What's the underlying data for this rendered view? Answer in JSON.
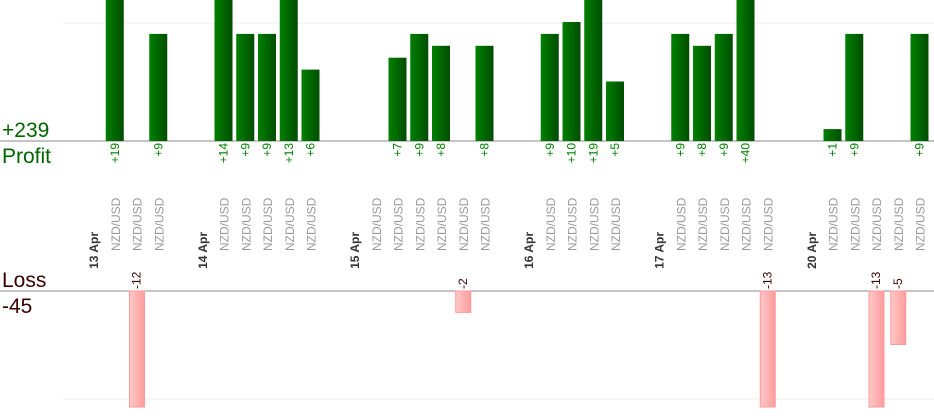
{
  "chart_data": {
    "type": "bar",
    "profit": {
      "label": "Profit",
      "total": "+239",
      "color": "#006400"
    },
    "loss": {
      "label": "Loss",
      "total": "-45",
      "color": "#ffa0a0"
    },
    "groups": [
      {
        "date": "13 Apr",
        "trades": [
          {
            "pair": "NZD/USD",
            "value": 19
          },
          {
            "pair": "NZD/USD",
            "value": -12
          },
          {
            "pair": "NZD/USD",
            "value": 9
          }
        ]
      },
      {
        "date": "14 Apr",
        "trades": [
          {
            "pair": "NZD/USD",
            "value": 14
          },
          {
            "pair": "NZD/USD",
            "value": 9
          },
          {
            "pair": "NZD/USD",
            "value": 9
          },
          {
            "pair": "NZD/USD",
            "value": 13
          },
          {
            "pair": "NZD/USD",
            "value": 6
          }
        ]
      },
      {
        "date": "15 Apr",
        "trades": [
          {
            "pair": "NZD/USD",
            "value": 0
          },
          {
            "pair": "NZD/USD",
            "value": 7
          },
          {
            "pair": "NZD/USD",
            "value": 9
          },
          {
            "pair": "NZD/USD",
            "value": 8
          },
          {
            "pair": "NZD/USD",
            "value": -2
          },
          {
            "pair": "NZD/USD",
            "value": 8
          }
        ]
      },
      {
        "date": "16 Apr",
        "trades": [
          {
            "pair": "NZD/USD",
            "value": 9
          },
          {
            "pair": "NZD/USD",
            "value": 10
          },
          {
            "pair": "NZD/USD",
            "value": 19
          },
          {
            "pair": "NZD/USD",
            "value": 5
          }
        ]
      },
      {
        "date": "17 Apr",
        "trades": [
          {
            "pair": "NZD/USD",
            "value": 9
          },
          {
            "pair": "NZD/USD",
            "value": 8
          },
          {
            "pair": "NZD/USD",
            "value": 9
          },
          {
            "pair": "NZD/USD",
            "value": 40
          },
          {
            "pair": "NZD/USD",
            "value": -13
          }
        ]
      },
      {
        "date": "20 Apr",
        "trades": [
          {
            "pair": "NZD/USD",
            "value": 1
          },
          {
            "pair": "NZD/USD",
            "value": 9
          },
          {
            "pair": "NZD/USD",
            "value": -13
          },
          {
            "pair": "NZD/USD",
            "value": -5
          },
          {
            "pair": "NZD/USD",
            "value": 9
          }
        ]
      }
    ]
  }
}
